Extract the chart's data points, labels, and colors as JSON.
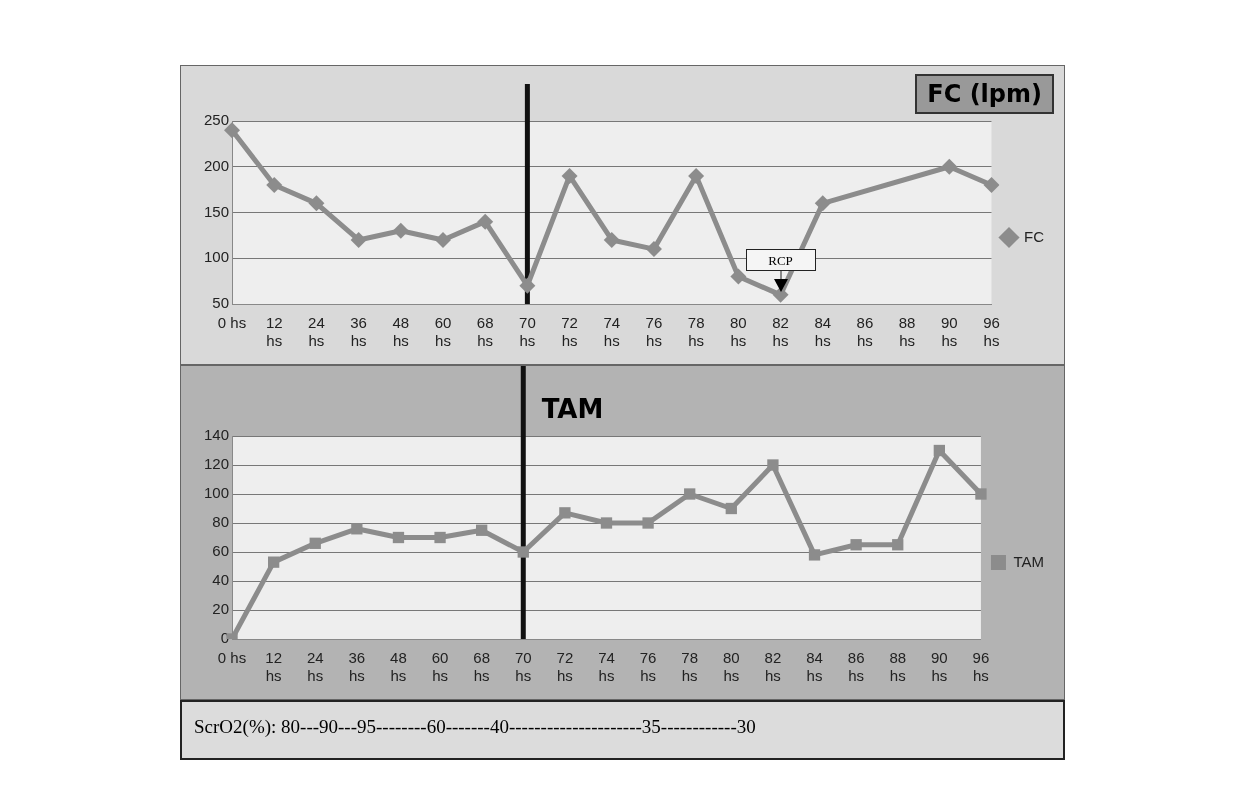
{
  "chart_data": [
    {
      "type": "line",
      "title": "FC (lpm)",
      "categories": [
        "0 hs",
        "12 hs",
        "24 hs",
        "36 hs",
        "48 hs",
        "60 hs",
        "68 hs",
        "70 hs",
        "72 hs",
        "74 hs",
        "76 hs",
        "78 hs",
        "80 hs",
        "82 hs",
        "84 hs",
        "86 hs",
        "88 hs",
        "90 hs",
        "96 hs"
      ],
      "series": [
        {
          "name": "FC",
          "color": "#8c8c8c",
          "marker": "diamond",
          "values": [
            240,
            180,
            160,
            120,
            130,
            120,
            140,
            70,
            190,
            120,
            110,
            190,
            80,
            60,
            160,
            null,
            null,
            200,
            180
          ]
        }
      ],
      "ylim": [
        50,
        250
      ],
      "yticks": [
        50,
        100,
        150,
        200,
        250
      ],
      "grid": "y",
      "legend": "right",
      "ref_lines": [
        {
          "axis": "x",
          "value": "70 hs",
          "color": "#111111"
        }
      ],
      "annotations": [
        {
          "text": "RCP",
          "x": "82 hs",
          "y": 60
        }
      ]
    },
    {
      "type": "line",
      "title": "TAM",
      "categories": [
        "0 hs",
        "12 hs",
        "24 hs",
        "36 hs",
        "48 hs",
        "60 hs",
        "68 hs",
        "70 hs",
        "72 hs",
        "74 hs",
        "76 hs",
        "78 hs",
        "80 hs",
        "82 hs",
        "84 hs",
        "86 hs",
        "88 hs",
        "90 hs",
        "96 hs"
      ],
      "series": [
        {
          "name": "TAM",
          "color": "#8c8c8c",
          "marker": "square",
          "values": [
            0,
            53,
            66,
            76,
            70,
            70,
            75,
            60,
            87,
            80,
            80,
            100,
            90,
            120,
            58,
            65,
            65,
            130,
            100
          ]
        }
      ],
      "ylim": [
        0,
        140
      ],
      "yticks": [
        0,
        20,
        40,
        60,
        80,
        100,
        120,
        140
      ],
      "grid": "y",
      "legend": "right",
      "ref_lines": [
        {
          "axis": "x",
          "value": "70 hs",
          "color": "#111111"
        }
      ],
      "annotations": [
        "ScrO2(%): 80---90---95--------60-------40---------------------35------------30"
      ]
    }
  ]
}
